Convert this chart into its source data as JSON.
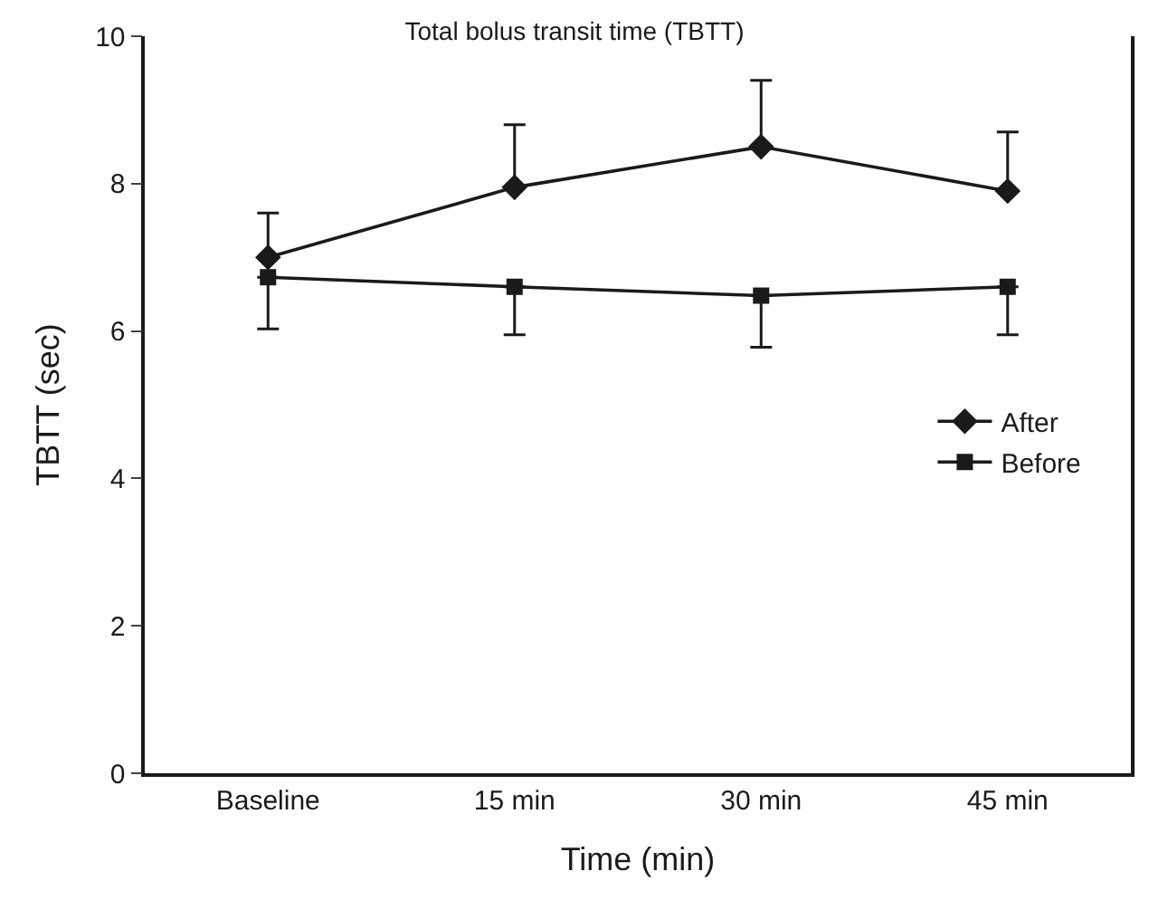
{
  "chart_data": {
    "type": "line",
    "title": "Total bolus transit time (TBTT)",
    "xlabel": "Time (min)",
    "ylabel": "TBTT (sec)",
    "categories": [
      "Baseline",
      "15 min",
      "30 min",
      "45 min"
    ],
    "series": [
      {
        "name": "After",
        "color": "#1a1a1a",
        "marker": "diamond",
        "values": [
          7.0,
          7.95,
          8.5,
          7.9
        ],
        "errors": [
          [
            7.0,
            7.6
          ],
          [
            7.95,
            8.8
          ],
          [
            8.5,
            9.4
          ],
          [
            7.9,
            8.7
          ]
        ]
      },
      {
        "name": "Before",
        "color": "#1a1a1a",
        "marker": "square",
        "values": [
          6.73,
          6.6,
          6.48,
          6.6
        ],
        "errors": [
          [
            6.03,
            6.73
          ],
          [
            5.95,
            6.6
          ],
          [
            5.78,
            6.48
          ],
          [
            5.95,
            6.6
          ]
        ]
      }
    ],
    "ylim": [
      0,
      10
    ],
    "yticks": [
      0,
      2,
      4,
      6,
      8,
      10
    ],
    "legend": "right"
  }
}
